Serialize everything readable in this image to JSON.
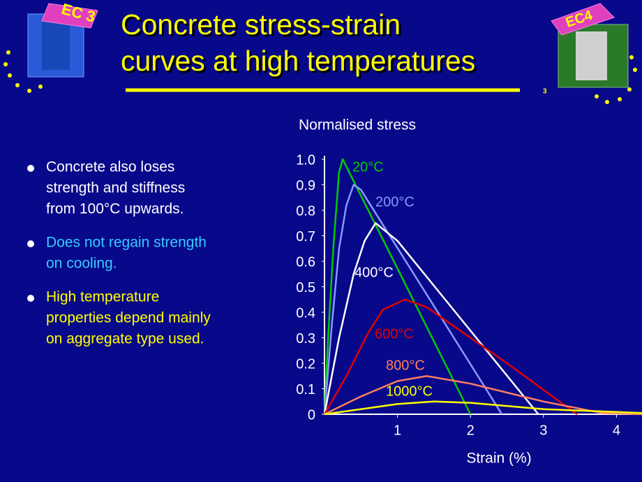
{
  "slide": {
    "title_lines": [
      "Concrete stress-strain",
      "curves at high temperatures"
    ],
    "logo_left": "EC 3",
    "logo_right": "EC4",
    "logo_right_number": "3",
    "bullets": [
      {
        "lines": [
          "Concrete also loses",
          "strength and stiffness",
          "from 100°C upwards."
        ],
        "color": "#ffffff"
      },
      {
        "lines": [
          "Does not regain strength",
          "on cooling."
        ],
        "color": "#33ccff"
      },
      {
        "lines": [
          "High temperature",
          "properties depend mainly",
          "on aggregate type used."
        ],
        "color": "#ffff00"
      }
    ]
  },
  "chart_data": {
    "type": "line",
    "y_label": "Normalised stress",
    "x_label": "Strain (%)",
    "xlim": [
      0,
      4.35
    ],
    "ylim": [
      0,
      1
    ],
    "xticks": [
      1,
      2,
      3,
      4
    ],
    "yticks": [
      0,
      0.1,
      0.2,
      0.3,
      0.4,
      0.5,
      0.6,
      0.7,
      0.8,
      0.9,
      {
        "value": 1,
        "label": "1.0"
      }
    ],
    "series": [
      {
        "name": "20°C",
        "color": "#00cc00",
        "x": [
          0,
          0.05,
          0.12,
          0.2,
          0.25,
          2.0
        ],
        "values": [
          0,
          0.3,
          0.65,
          0.95,
          1.0,
          0
        ]
      },
      {
        "name": "200°C",
        "color": "#8899ff",
        "x": [
          0,
          0.1,
          0.2,
          0.3,
          0.4,
          0.5,
          2.43
        ],
        "values": [
          0,
          0.35,
          0.65,
          0.82,
          0.9,
          0.88,
          0
        ]
      },
      {
        "name": "400°C",
        "color": "#ffffff",
        "x": [
          0,
          0.2,
          0.4,
          0.55,
          0.7,
          1.0,
          2.93
        ],
        "values": [
          0,
          0.3,
          0.55,
          0.68,
          0.75,
          0.68,
          0
        ]
      },
      {
        "name": "600°C",
        "color": "#e00000",
        "x": [
          0,
          0.3,
          0.6,
          0.8,
          1.1,
          1.4,
          2.5,
          3.46
        ],
        "values": [
          0,
          0.15,
          0.32,
          0.41,
          0.45,
          0.42,
          0.2,
          0
        ]
      },
      {
        "name": "800°C",
        "color": "#ff8060",
        "x": [
          0,
          0.5,
          1.0,
          1.4,
          2.0,
          3.0,
          3.8,
          4.35
        ],
        "values": [
          0,
          0.07,
          0.13,
          0.15,
          0.12,
          0.05,
          0.005,
          0
        ]
      },
      {
        "name": "1000°C",
        "color": "#ffff00",
        "x": [
          0,
          0.5,
          1.0,
          1.5,
          2.0,
          3.0,
          4.35
        ],
        "values": [
          0,
          0.02,
          0.04,
          0.05,
          0.045,
          0.02,
          0.005
        ]
      }
    ]
  }
}
